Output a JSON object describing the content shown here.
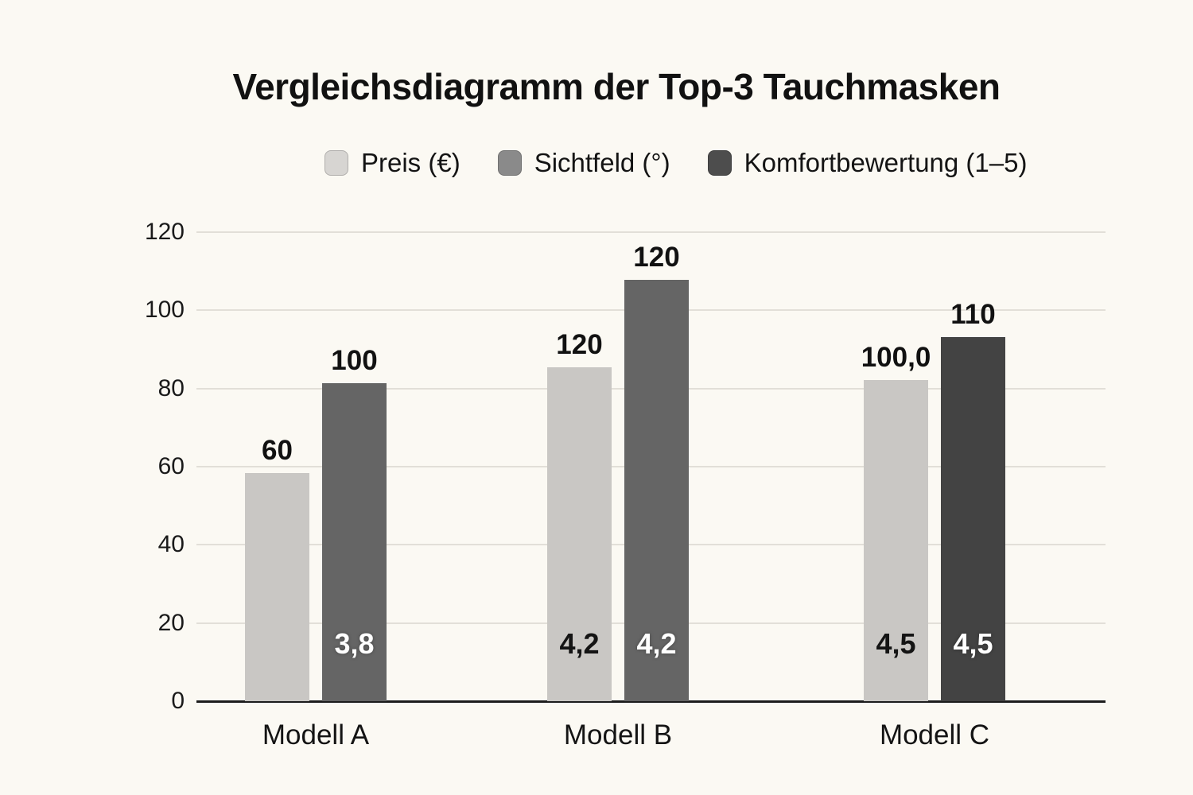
{
  "title": "Vergleichsdiagramm der Top-3 Tauchmasken",
  "legend": {
    "items": [
      {
        "label": "Preis (€)",
        "swatch_color": "#d7d5d2",
        "swatch_name": "preis-swatch"
      },
      {
        "label": "Sichtfeld (°)",
        "swatch_color": "#8a8a8a",
        "swatch_name": "sichtfeld-swatch"
      },
      {
        "label": "Komfortbewertung (1–5)",
        "swatch_color": "#4d4d4d",
        "swatch_name": "komfort-swatch"
      }
    ]
  },
  "chart_data": {
    "type": "bar",
    "title": "Vergleichsdiagramm der Top-3 Tauchmasken",
    "categories": [
      "Modell A",
      "Modell B",
      "Modell C"
    ],
    "series": [
      {
        "name": "Preis (€)",
        "values": [
          60,
          120,
          100.0
        ]
      },
      {
        "name": "Sichtfeld (°)",
        "values": [
          100,
          120,
          110
        ]
      },
      {
        "name": "Komfortbewertung (1–5)",
        "values": [
          3.8,
          4.2,
          4.5
        ]
      }
    ],
    "xlabel": "",
    "ylabel": "",
    "ylim": [
      0,
      120
    ],
    "yticks": [
      0,
      20,
      40,
      60,
      80,
      100,
      120
    ],
    "grid": true,
    "legend_position": "top",
    "colors": {
      "background": "#fbf9f3",
      "light_bar": "#c9c7c4",
      "medium_bar": "#656565",
      "dark_bar": "#434343",
      "gridline": "#e2dfd8",
      "axis_line": "#1c1c1c"
    },
    "rendered_groups": [
      {
        "category": "Modell A",
        "bars": [
          {
            "fill": "#c9c7c4",
            "drawn_height_units": 58.4,
            "top_label": "60",
            "inside_label": "",
            "inside_label_color": ""
          },
          {
            "fill": "#656565",
            "drawn_height_units": 81.4,
            "top_label": "100",
            "inside_label": "3,8",
            "inside_label_color": "#ffffff"
          }
        ]
      },
      {
        "category": "Modell B",
        "bars": [
          {
            "fill": "#c9c7c4",
            "drawn_height_units": 85.4,
            "top_label": "120",
            "inside_label": "4,2",
            "inside_label_color": "#141414"
          },
          {
            "fill": "#656565",
            "drawn_height_units": 107.8,
            "top_label": "120",
            "inside_label": "4,2",
            "inside_label_color": "#ffffff"
          }
        ]
      },
      {
        "category": "Modell C",
        "bars": [
          {
            "fill": "#c9c7c4",
            "drawn_height_units": 82.2,
            "top_label": "100,0",
            "inside_label": "4,5",
            "inside_label_color": "#141414"
          },
          {
            "fill": "#434343",
            "drawn_height_units": 93.2,
            "top_label": "110",
            "inside_label": "4,5",
            "inside_label_color": "#ffffff"
          }
        ]
      }
    ]
  }
}
